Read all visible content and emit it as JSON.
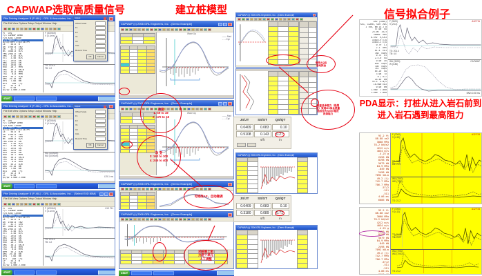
{
  "titles": {
    "left": "CAPWAP选取高质量信号",
    "middle": "建立桩模型",
    "right": "信号拟合例子",
    "pda_line1": "PDA显示：打桩从进入岩石前到",
    "pda_line2": "进入岩石遇到最高阻力"
  },
  "left": {
    "title": "Pile Driving Analyzer 8 (P-46L) - GRL & Associates, Inc. - [Select E0D 80M]",
    "menu": "File  Edit  View  Options  Setup  Output  Window  Help",
    "stats": [
      "PT  CM1",
      "F/1 CAPWAP Demo",
      "F/B Acol Lande",
      "F/B MONCK 1999",
      "8/13/1999 1:43:38 PM",
      "LE    54.6  m",
      "AR  1936.0  cm2",
      "EM    41.7  GPa",
      "WS  3658.0  m/s",
      "FMX 2953.6  kN",
      "VMX   3.58  m/s",
      "VT1   3.58  m/s",
      "FT1   2953  kN",
      "RMX   2491  kN",
      "RX4   2644  kN",
      "RX6   28.7  MPa",
      "EMX   38.1  kN-m",
      "CSX   34.8  MPa",
      "TSX    8.8  MPa",
      "BPM   55.2  b/m",
      "DMX  29.10  mm",
      "DFN   7.68  mm",
      "BTA    100  (%)",
      "LP    53.3  m",
      "JC    0.50",
      "Q1/Q2 1.000 2.000"
    ],
    "legend_f": "F (4000kN)",
    "legend_v": "V (4.1m/s)",
    "legend_wu": "WU (4000kN)",
    "legend_wd": "WD (4000kN)",
    "tag_ts": "TS: 2Ch-4",
    "tag_tb": "TB: 4.2",
    "corner2": "L25-1 ms",
    "corner3": "613 F11",
    "dialog": {
      "title": "Adjust",
      "fields": [
        "Offset Scale",
        "F1",
        "F2",
        "V1",
        "V2",
        "CAL",
        "Record Time"
      ],
      "ok": "OK",
      "cancel": "Cancel"
    },
    "start": "start"
  },
  "mid": {
    "title": "CAPWAP (c) 2006 GRL Engineers, Inc. - [Demo Example]",
    "caption": "Wave Up",
    "legend1": "—— Msd",
    "legend2": "- - - Cpt",
    "ann1": [
      "改变",
      "1: 59 to 19",
      "2: 170 to 18"
    ],
    "ann2": [
      "改 变",
      "3: 163 to 100",
      "4: 245 to 400"
    ],
    "ann3": [
      "可修改AF，自动微调"
    ],
    "ann4": [
      "对桩侧土阻",
      "力逐个单元",
      "人工调整"
    ],
    "ann5": [
      "修改AQ后",
      "自动拟合"
    ],
    "ann6": [
      "检查总承载力（极限",
      "值）采用MS拟合质量",
      "结合加大Smith阻尼",
      "反演阻力"
    ]
  },
  "js1": {
    "h": [
      "JS/JT",
      "SS/ST",
      "QS/QT"
    ],
    "r1": [
      "0.0409",
      "0.083",
      "0.10"
    ],
    "r2": [
      "0.5108",
      "0.143",
      "0.27"
    ],
    "u": [
      "",
      "s/ft",
      "in"
    ]
  },
  "js2": {
    "h": [
      "JS/JT",
      "SS/ST",
      "QS/QT"
    ],
    "r1": [
      "0.0409",
      "0.083",
      "0.10"
    ],
    "r2": [
      "0.3180",
      "0.089",
      "0.71"
    ],
    "u": [
      "",
      "s/ft",
      "in"
    ]
  },
  "rtop": {
    "info": [
      "AR2 (1000)",
      "KE1, CLARK, SOFT-ROCK",
      "1 T06, BN 14 2 0",
      "57.00  EA",
      "24.00  15/3",
      "30000  kms",
      "0.492  K/CK3",
      "16810.9 E/A",
      "16834.3 E/A",
      "0.79  L1",
      "2.1  kms",
      "81.4  EA1",
      "788  kips",
      "0.75  L5",
      "2.4-0  EA",
      "0.00  L6",
      "830  kips",
      "708  kips",
      "781  kips",
      "85.20  EA",
      "3.08  TX",
      "0 / 617",
      "18.40  Bm",
      "95.4  k-m/s",
      "18.000 EA3",
      "0.00  Bm",
      "1.000  1.000",
      "1.000  1.000"
    ],
    "f": "F (3000)",
    "v": "V (24.4)",
    "ts": "TS: 201.4",
    "tb": "TB: 4.0",
    "corner": "A12 F11",
    "capwap": "CAPWAP",
    "wu": "WU (3000)",
    "w": "W (0.80)",
    "bn": "BN2=0.08 ms"
  },
  "pda": {
    "values": [
      "93.2 ft",
      "88.88 cm2",
      "3000 MPa",
      "78.2 kN/m2",
      "4212 m/s",
      "4034 m/s",
      "-4.25 g",
      "2456 kN",
      "8198 kN",
      "5679 kN",
      "84.9 MPa",
      "-849 kN",
      "2498 kN",
      "7092 kN-m",
      "49.2 (%)",
      "742.7 MPa",
      "706.7 MPa",
      ".57/2",
      ".511",
      ".511",
      "4.06 ms",
      "6006 kN"
    ],
    "f": "F (7000)",
    "v": "V (4.13)",
    "ts": "TS: 21.2",
    "tb": "TB: 72.3",
    "wu": "WU (7000)",
    "wd": "WD (7000)",
    "ts2": "TS: 21.2",
    "corner": "A12 F24"
  }
}
